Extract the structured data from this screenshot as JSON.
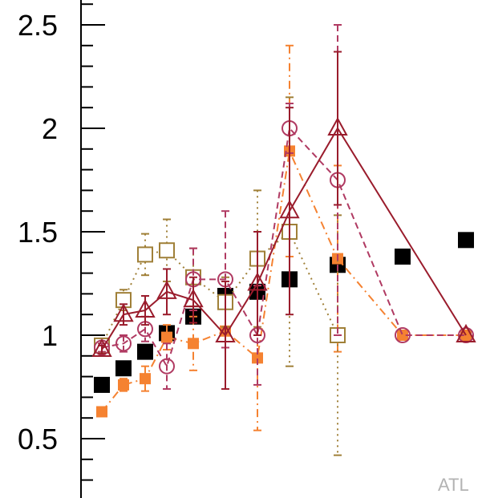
{
  "chart_data": {
    "type": "scatter",
    "title": "",
    "xlabel": "",
    "ylabel": "",
    "ylim": [
      0.2,
      2.7
    ],
    "y_ticks": [
      {
        "value": 0.5,
        "label": "0.5"
      },
      {
        "value": 1,
        "label": "1"
      },
      {
        "value": 1.5,
        "label": "1.5"
      },
      {
        "value": 2,
        "label": "2"
      },
      {
        "value": 2.5,
        "label": "2.5"
      }
    ],
    "y_minor_step": 0.1,
    "grid": false,
    "legend": "none",
    "watermark": "ATL",
    "series": [
      {
        "marker": "filled-square",
        "color": "#000000",
        "line": "none",
        "x": [
          1,
          2,
          3,
          4,
          5,
          6,
          7,
          8,
          9,
          10,
          11
        ],
        "y": [
          0.76,
          0.84,
          0.92,
          1.01,
          1.09,
          1.19,
          1.21,
          1.27,
          1.34,
          1.38,
          1.46
        ],
        "err": [
          0,
          0,
          0,
          0,
          0,
          0,
          0,
          0,
          0,
          0,
          0
        ]
      },
      {
        "marker": "filled-square",
        "color": "#f58231",
        "line": "dashdot",
        "x": [
          1,
          2,
          3,
          4,
          5,
          6,
          7,
          8,
          9,
          10,
          11
        ],
        "y": [
          0.63,
          0.76,
          0.79,
          0.99,
          0.96,
          1.02,
          0.89,
          1.89,
          1.37,
          1.0,
          1.0
        ],
        "err": [
          0,
          0.03,
          0.06,
          0.06,
          0.13,
          0.0,
          0.35,
          0.51,
          0.45,
          0,
          0
        ]
      },
      {
        "marker": "open-square",
        "color": "#a08038",
        "line": "dotted",
        "x": [
          1,
          2,
          3,
          4,
          5,
          6,
          7,
          8,
          9
        ],
        "y": [
          0.95,
          1.17,
          1.39,
          1.41,
          1.28,
          1.16,
          1.37,
          1.5,
          1.0
        ],
        "err": [
          0.02,
          0.05,
          0.1,
          0.15,
          0.14,
          0.12,
          0.33,
          0.65,
          0.58
        ]
      },
      {
        "marker": "open-circle",
        "color": "#b03a62",
        "line": "dashed",
        "x": [
          1,
          2,
          3,
          4,
          5,
          6,
          7,
          8,
          9,
          10,
          11
        ],
        "y": [
          0.94,
          0.96,
          1.03,
          0.85,
          1.27,
          1.27,
          1.0,
          2.0,
          1.75,
          1.0,
          1.0
        ],
        "err": [
          0.02,
          0.04,
          0.06,
          0.11,
          0.15,
          0.33,
          0.24,
          0.12,
          0.75,
          0,
          0
        ]
      },
      {
        "marker": "open-triangle",
        "color": "#9a1c2c",
        "line": "solid",
        "x": [
          1,
          2,
          3,
          4,
          5,
          6,
          7,
          8,
          9,
          11
        ],
        "y": [
          0.93,
          1.1,
          1.12,
          1.21,
          1.17,
          1.0,
          1.25,
          1.6,
          2.0,
          1.0
        ],
        "err": [
          0.02,
          0.05,
          0.07,
          0.11,
          0.11,
          0.26,
          0.25,
          0.5,
          0.37,
          0
        ]
      }
    ]
  }
}
